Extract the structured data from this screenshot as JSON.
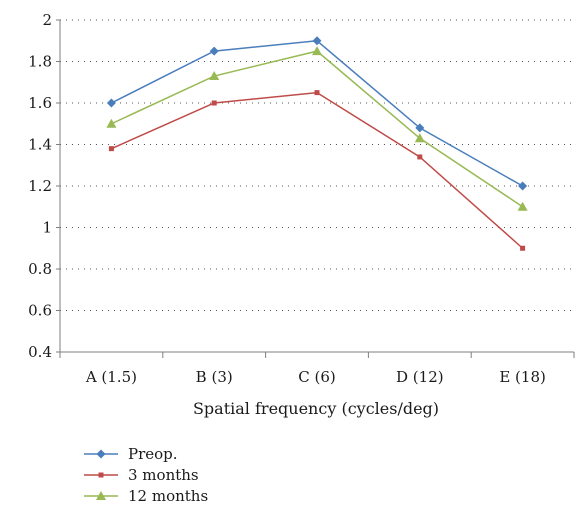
{
  "chart_data": {
    "type": "line",
    "categories": [
      "A (1.5)",
      "B (3)",
      "C (6)",
      "D (12)",
      "E (18)"
    ],
    "xlabel": "Spatial frequency (cycles/deg)",
    "ylabel": "",
    "ylim": [
      0.4,
      2
    ],
    "yticks": [
      0.4,
      0.6,
      0.8,
      1,
      1.2,
      1.4,
      1.6,
      1.8,
      2
    ],
    "grid": "horizontal dotted",
    "legend_position": "bottom-left",
    "series": [
      {
        "name": "Preop.",
        "values": [
          1.6,
          1.85,
          1.9,
          1.48,
          1.2
        ],
        "color": "#4a7ebb",
        "marker": "diamond"
      },
      {
        "name": "3 months",
        "values": [
          1.38,
          1.6,
          1.65,
          1.34,
          0.9
        ],
        "color": "#be4b48",
        "marker": "square"
      },
      {
        "name": "12 months",
        "values": [
          1.5,
          1.73,
          1.85,
          1.43,
          1.1
        ],
        "color": "#98b954",
        "marker": "triangle"
      }
    ]
  }
}
